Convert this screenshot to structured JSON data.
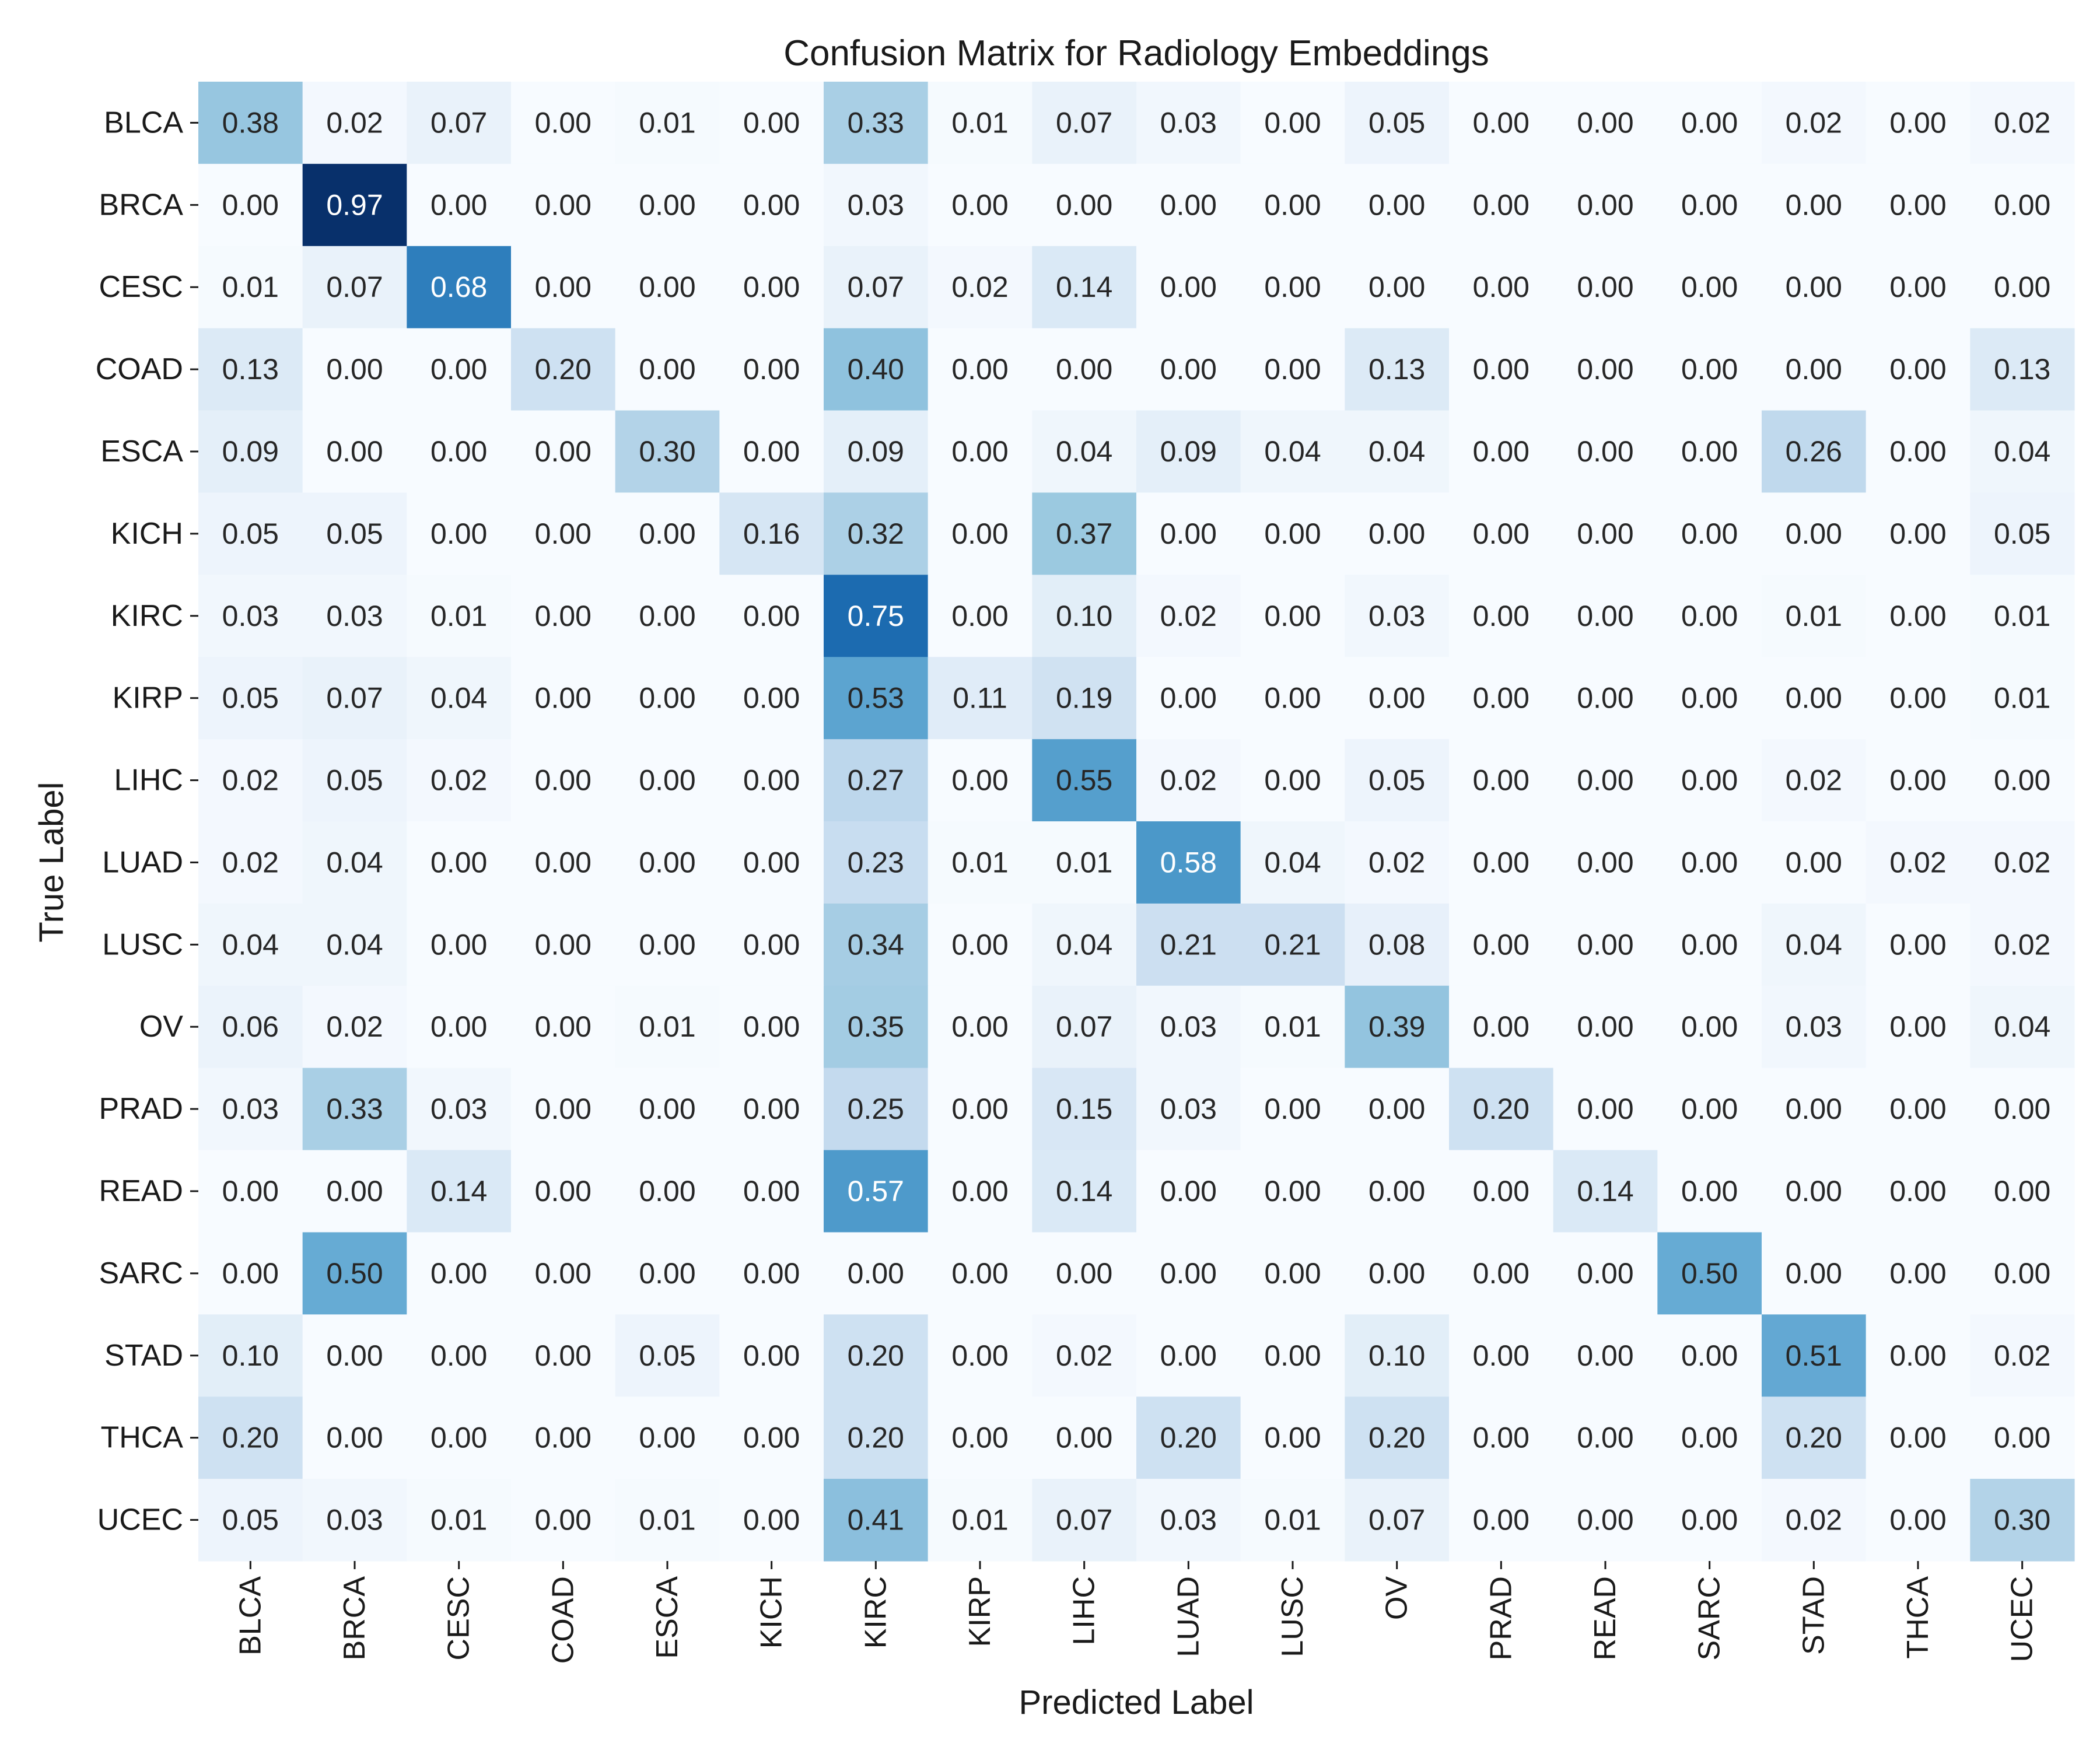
{
  "chart_data": {
    "type": "heatmap",
    "title": "Confusion Matrix for Radiology Embeddings",
    "xlabel": "Predicted Label",
    "ylabel": "True Label",
    "x_categories": [
      "BLCA",
      "BRCA",
      "CESC",
      "COAD",
      "ESCA",
      "KICH",
      "KIRC",
      "KIRP",
      "LIHC",
      "LUAD",
      "LUSC",
      "OV",
      "PRAD",
      "READ",
      "SARC",
      "STAD",
      "THCA",
      "UCEC"
    ],
    "y_categories": [
      "BLCA",
      "BRCA",
      "CESC",
      "COAD",
      "ESCA",
      "KICH",
      "KIRC",
      "KIRP",
      "LIHC",
      "LUAD",
      "LUSC",
      "OV",
      "PRAD",
      "READ",
      "SARC",
      "STAD",
      "THCA",
      "UCEC"
    ],
    "values": [
      [
        0.38,
        0.02,
        0.07,
        0.0,
        0.01,
        0.0,
        0.33,
        0.01,
        0.07,
        0.03,
        0.0,
        0.05,
        0.0,
        0.0,
        0.0,
        0.02,
        0.0,
        0.02
      ],
      [
        0.0,
        0.97,
        0.0,
        0.0,
        0.0,
        0.0,
        0.03,
        0.0,
        0.0,
        0.0,
        0.0,
        0.0,
        0.0,
        0.0,
        0.0,
        0.0,
        0.0,
        0.0
      ],
      [
        0.01,
        0.07,
        0.68,
        0.0,
        0.0,
        0.0,
        0.07,
        0.02,
        0.14,
        0.0,
        0.0,
        0.0,
        0.0,
        0.0,
        0.0,
        0.0,
        0.0,
        0.0
      ],
      [
        0.13,
        0.0,
        0.0,
        0.2,
        0.0,
        0.0,
        0.4,
        0.0,
        0.0,
        0.0,
        0.0,
        0.13,
        0.0,
        0.0,
        0.0,
        0.0,
        0.0,
        0.13
      ],
      [
        0.09,
        0.0,
        0.0,
        0.0,
        0.3,
        0.0,
        0.09,
        0.0,
        0.04,
        0.09,
        0.04,
        0.04,
        0.0,
        0.0,
        0.0,
        0.26,
        0.0,
        0.04
      ],
      [
        0.05,
        0.05,
        0.0,
        0.0,
        0.0,
        0.16,
        0.32,
        0.0,
        0.37,
        0.0,
        0.0,
        0.0,
        0.0,
        0.0,
        0.0,
        0.0,
        0.0,
        0.05
      ],
      [
        0.03,
        0.03,
        0.01,
        0.0,
        0.0,
        0.0,
        0.75,
        0.0,
        0.1,
        0.02,
        0.0,
        0.03,
        0.0,
        0.0,
        0.0,
        0.01,
        0.0,
        0.01
      ],
      [
        0.05,
        0.07,
        0.04,
        0.0,
        0.0,
        0.0,
        0.53,
        0.11,
        0.19,
        0.0,
        0.0,
        0.0,
        0.0,
        0.0,
        0.0,
        0.0,
        0.0,
        0.01
      ],
      [
        0.02,
        0.05,
        0.02,
        0.0,
        0.0,
        0.0,
        0.27,
        0.0,
        0.55,
        0.02,
        0.0,
        0.05,
        0.0,
        0.0,
        0.0,
        0.02,
        0.0,
        0.0
      ],
      [
        0.02,
        0.04,
        0.0,
        0.0,
        0.0,
        0.0,
        0.23,
        0.01,
        0.01,
        0.58,
        0.04,
        0.02,
        0.0,
        0.0,
        0.0,
        0.0,
        0.02,
        0.02
      ],
      [
        0.04,
        0.04,
        0.0,
        0.0,
        0.0,
        0.0,
        0.34,
        0.0,
        0.04,
        0.21,
        0.21,
        0.08,
        0.0,
        0.0,
        0.0,
        0.04,
        0.0,
        0.02
      ],
      [
        0.06,
        0.02,
        0.0,
        0.0,
        0.01,
        0.0,
        0.35,
        0.0,
        0.07,
        0.03,
        0.01,
        0.39,
        0.0,
        0.0,
        0.0,
        0.03,
        0.0,
        0.04
      ],
      [
        0.03,
        0.33,
        0.03,
        0.0,
        0.0,
        0.0,
        0.25,
        0.0,
        0.15,
        0.03,
        0.0,
        0.0,
        0.2,
        0.0,
        0.0,
        0.0,
        0.0,
        0.0
      ],
      [
        0.0,
        0.0,
        0.14,
        0.0,
        0.0,
        0.0,
        0.57,
        0.0,
        0.14,
        0.0,
        0.0,
        0.0,
        0.0,
        0.14,
        0.0,
        0.0,
        0.0,
        0.0
      ],
      [
        0.0,
        0.5,
        0.0,
        0.0,
        0.0,
        0.0,
        0.0,
        0.0,
        0.0,
        0.0,
        0.0,
        0.0,
        0.0,
        0.0,
        0.5,
        0.0,
        0.0,
        0.0
      ],
      [
        0.1,
        0.0,
        0.0,
        0.0,
        0.05,
        0.0,
        0.2,
        0.0,
        0.02,
        0.0,
        0.0,
        0.1,
        0.0,
        0.0,
        0.0,
        0.51,
        0.0,
        0.02
      ],
      [
        0.2,
        0.0,
        0.0,
        0.0,
        0.0,
        0.0,
        0.2,
        0.0,
        0.0,
        0.2,
        0.0,
        0.2,
        0.0,
        0.0,
        0.0,
        0.2,
        0.0,
        0.0
      ],
      [
        0.05,
        0.03,
        0.01,
        0.0,
        0.01,
        0.0,
        0.41,
        0.01,
        0.07,
        0.03,
        0.01,
        0.07,
        0.0,
        0.0,
        0.0,
        0.02,
        0.0,
        0.3
      ]
    ],
    "value_format": "0.00",
    "colormap": "Blues",
    "color_range": [
      0,
      0.97
    ],
    "colorbar": false,
    "grid": false
  }
}
